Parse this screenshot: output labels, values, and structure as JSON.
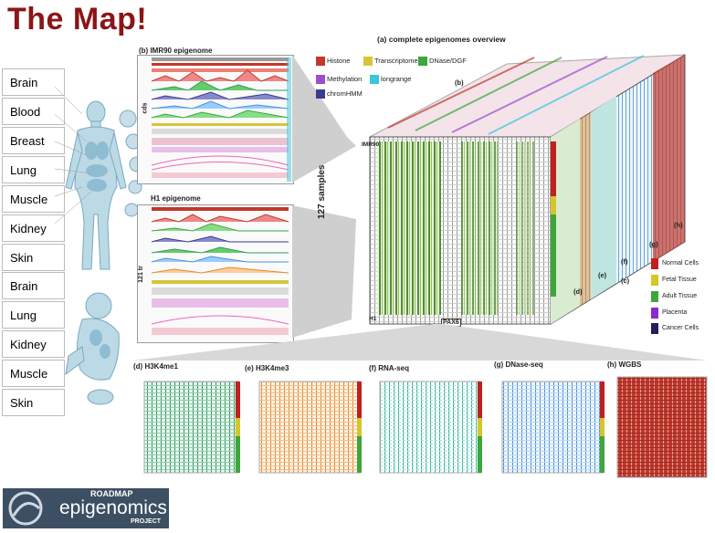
{
  "title": "The Map!",
  "tissues": [
    "Brain",
    "Blood",
    "Breast",
    "Lung",
    "Muscle",
    "Kidney",
    "Skin",
    "Brain",
    "Lung",
    "Kidney",
    "Muscle",
    "Skin"
  ],
  "overview_title": "(a) complete epigenomes overview",
  "imr90_title": "(b) IMR90 epigenome",
  "h1_title": "H1 epigenome",
  "imr90_side": "cds",
  "h1_side": "121 tr",
  "samples_label": "127 samples",
  "row_labels": {
    "imr90": "IMR90",
    "h1": "H1"
  },
  "gene_label": "PAX6",
  "assay_legend": [
    {
      "label": "Histone",
      "color": "#c0392b"
    },
    {
      "label": "Transcriptome",
      "color": "#d4c63a"
    },
    {
      "label": "DNase/DGF",
      "color": "#3aa83a"
    },
    {
      "label": "Methylation",
      "color": "#9b4fc8"
    },
    {
      "label": "longrange",
      "color": "#3cc6d8"
    },
    {
      "label": "chromHMM",
      "color": "#3b3b8f"
    }
  ],
  "tissue_legend": [
    {
      "label": "Normal Cells",
      "color": "#c0201e"
    },
    {
      "label": "Fetal Tissue",
      "color": "#d6c62a"
    },
    {
      "label": "Adult Tissue",
      "color": "#3ea63a"
    },
    {
      "label": "Placenta",
      "color": "#8a2bd0"
    },
    {
      "label": "Cancer Cells",
      "color": "#2a1a5e"
    }
  ],
  "cube_face_labels": [
    "(b)",
    "(c)",
    "(d)",
    "(e)",
    "(f)",
    "(g)",
    "(h)"
  ],
  "bottom_panels": [
    {
      "title": "(d) H3K4me1",
      "color": "#2e9a6a"
    },
    {
      "title": "(e) H3K4me3",
      "color": "#e08a2a"
    },
    {
      "title": "(f) RNA-seq",
      "color": "#2fb3a0"
    },
    {
      "title": "(g) DNase-seq",
      "color": "#4a90d9"
    },
    {
      "title": "(h) WGBS",
      "color": "#c0392b"
    }
  ],
  "logo": {
    "line1": "ROADMAP",
    "line2": "epigenomics",
    "line3": "PROJECT"
  }
}
